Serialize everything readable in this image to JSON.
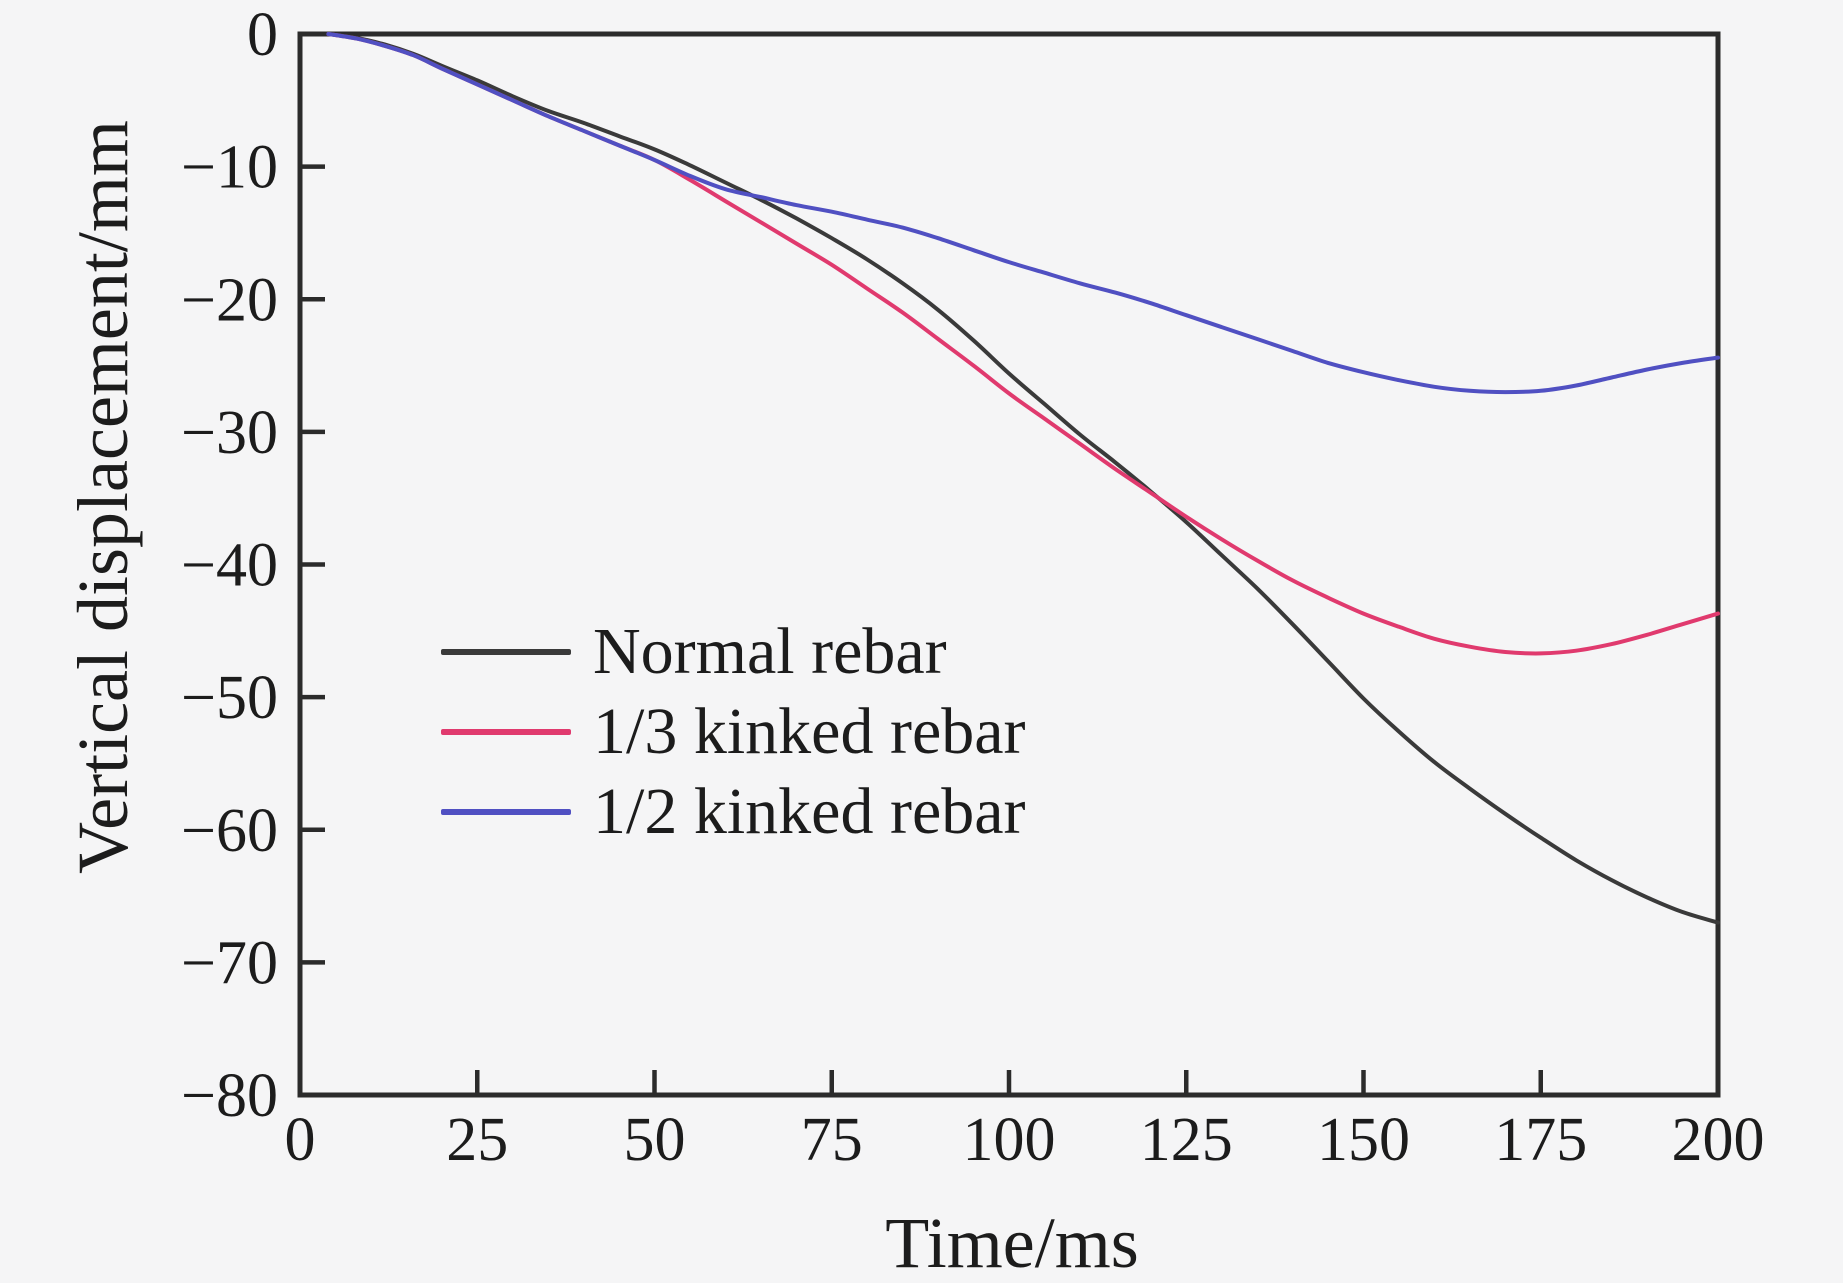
{
  "figure": {
    "background_color": "#f5f5f6",
    "frame_color": "#2b2b2b",
    "text_color": "#1c1c1c"
  },
  "chart_data": {
    "type": "line",
    "title": "",
    "xlabel": "Time/ms",
    "ylabel": "Vertical displacement/mm",
    "xlim": [
      0,
      200
    ],
    "ylim": [
      -80,
      0
    ],
    "x_ticks": [
      0,
      25,
      50,
      75,
      100,
      125,
      150,
      175,
      200
    ],
    "y_ticks": [
      0,
      -10,
      -20,
      -30,
      -40,
      -50,
      -60,
      -70,
      -80
    ],
    "grid": false,
    "legend_position": "inside-center-left",
    "series": [
      {
        "name": "Normal rebar",
        "color": "#3a3a3a",
        "x": [
          4,
          8,
          12,
          16,
          20,
          25,
          30,
          35,
          40,
          45,
          50,
          55,
          60,
          65,
          70,
          75,
          80,
          85,
          90,
          95,
          100,
          105,
          110,
          115,
          120,
          125,
          130,
          135,
          140,
          145,
          150,
          155,
          160,
          165,
          170,
          175,
          180,
          185,
          190,
          195,
          200
        ],
        "y": [
          0,
          -0.3,
          -0.8,
          -1.5,
          -2.4,
          -3.5,
          -4.7,
          -5.8,
          -6.7,
          -7.7,
          -8.7,
          -9.9,
          -11.2,
          -12.5,
          -13.9,
          -15.4,
          -17.0,
          -18.8,
          -20.8,
          -23.1,
          -25.6,
          -27.9,
          -30.2,
          -32.3,
          -34.5,
          -36.8,
          -39.3,
          -41.8,
          -44.5,
          -47.3,
          -50.1,
          -52.6,
          -54.9,
          -56.9,
          -58.8,
          -60.6,
          -62.3,
          -63.8,
          -65.1,
          -66.2,
          -67.0
        ]
      },
      {
        "name": "1/3 kinked rebar",
        "color": "#e03a6e",
        "x": [
          4,
          8,
          12,
          16,
          20,
          25,
          30,
          35,
          40,
          45,
          50,
          55,
          60,
          65,
          70,
          75,
          80,
          85,
          90,
          95,
          100,
          105,
          110,
          115,
          120,
          125,
          130,
          135,
          140,
          145,
          150,
          155,
          160,
          165,
          170,
          175,
          180,
          185,
          190,
          195,
          200
        ],
        "y": [
          0,
          -0.35,
          -0.9,
          -1.6,
          -2.6,
          -3.8,
          -5.0,
          -6.2,
          -7.3,
          -8.4,
          -9.5,
          -11.0,
          -12.6,
          -14.2,
          -15.8,
          -17.4,
          -19.2,
          -21.0,
          -23.0,
          -25.0,
          -27.1,
          -29.0,
          -30.9,
          -32.8,
          -34.6,
          -36.4,
          -38.1,
          -39.7,
          -41.2,
          -42.5,
          -43.7,
          -44.7,
          -45.6,
          -46.2,
          -46.6,
          -46.7,
          -46.5,
          -46.0,
          -45.3,
          -44.5,
          -43.7
        ]
      },
      {
        "name": "1/2 kinked rebar",
        "color": "#5050c2",
        "x": [
          4,
          8,
          12,
          16,
          20,
          25,
          30,
          35,
          40,
          45,
          50,
          55,
          60,
          65,
          70,
          75,
          80,
          85,
          90,
          95,
          100,
          105,
          110,
          115,
          120,
          125,
          130,
          135,
          140,
          145,
          150,
          155,
          160,
          165,
          170,
          175,
          180,
          185,
          190,
          195,
          200
        ],
        "y": [
          0,
          -0.35,
          -0.9,
          -1.6,
          -2.6,
          -3.8,
          -5.0,
          -6.2,
          -7.3,
          -8.4,
          -9.5,
          -10.7,
          -11.7,
          -12.3,
          -12.9,
          -13.4,
          -14.0,
          -14.6,
          -15.4,
          -16.3,
          -17.2,
          -18.0,
          -18.8,
          -19.5,
          -20.3,
          -21.2,
          -22.1,
          -23.0,
          -23.9,
          -24.8,
          -25.5,
          -26.1,
          -26.6,
          -26.9,
          -27.0,
          -26.9,
          -26.5,
          -25.9,
          -25.3,
          -24.8,
          -24.4
        ]
      }
    ]
  }
}
